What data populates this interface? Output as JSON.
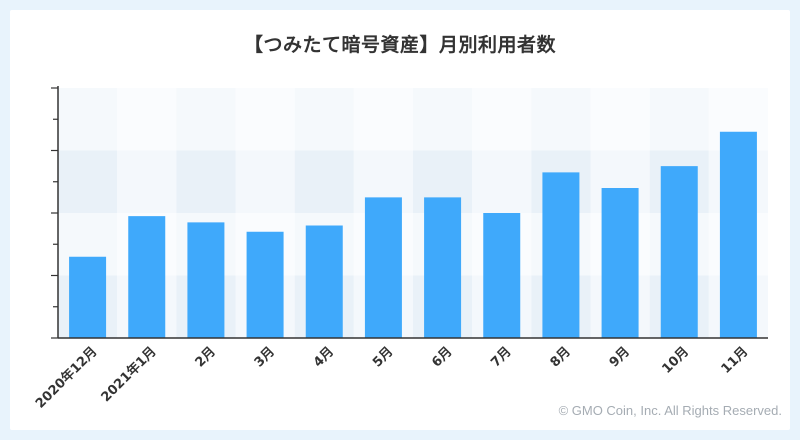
{
  "chart_data": {
    "type": "bar",
    "title": "【つみたて暗号資産】月別利用者数",
    "xlabel": "",
    "ylabel": "",
    "categories": [
      "2020年12月",
      "2021年1月",
      "2月",
      "3月",
      "4月",
      "5月",
      "6月",
      "7月",
      "8月",
      "9月",
      "10月",
      "11月"
    ],
    "values": [
      26,
      39,
      37,
      34,
      36,
      45,
      45,
      40,
      53,
      48,
      55,
      66
    ],
    "ylim": [
      0,
      80
    ],
    "yticks_labeled": false,
    "grid": true,
    "legend": "none",
    "bar_color": "#3fa9fb"
  },
  "footer": {
    "copyright": "© GMO Coin, Inc. All Rights Reserved."
  }
}
